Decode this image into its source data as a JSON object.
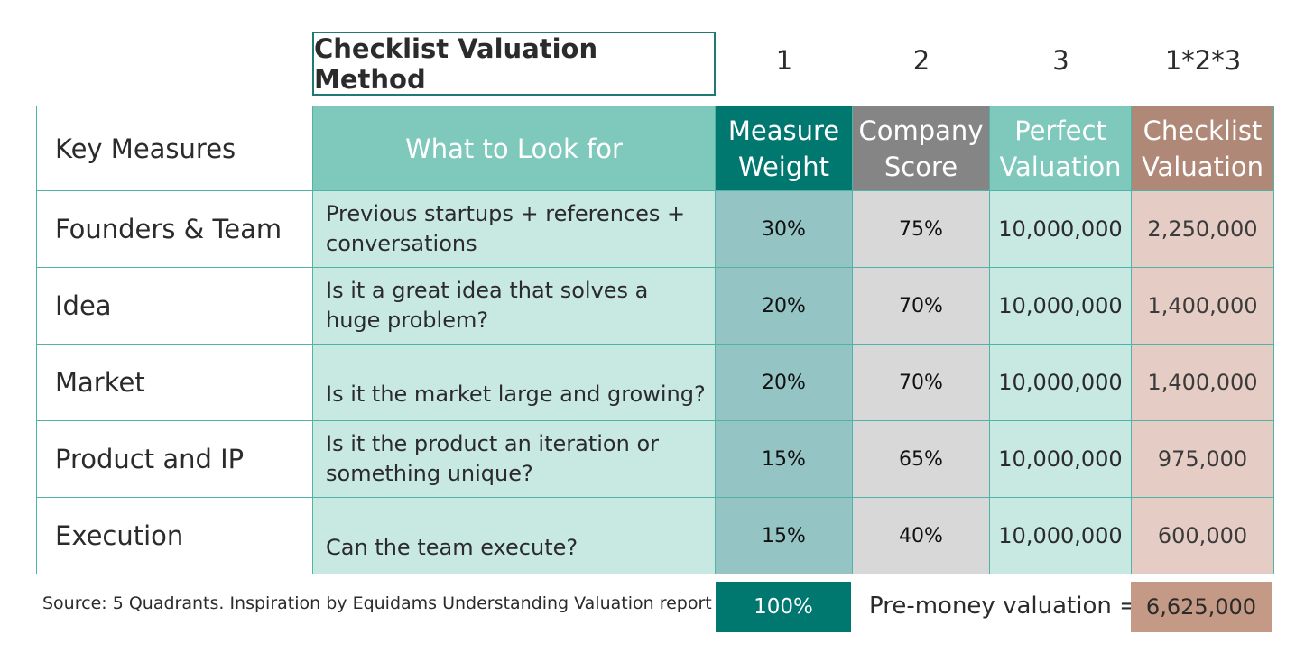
{
  "title": "Checklist Valuation Method",
  "column_numbers": [
    "1",
    "2",
    "3",
    "1*2*3"
  ],
  "headers": {
    "key_measures": "Key Measures",
    "what_to_look_for": "What to Look for",
    "measure_weight": [
      "Measure",
      "Weight"
    ],
    "company_score": [
      "Company",
      "Score"
    ],
    "perfect_valuation": [
      "Perfect",
      "Valuation"
    ],
    "checklist_valuation": [
      "Checklist",
      "Valuation"
    ]
  },
  "rows": [
    {
      "measure": "Founders & Team",
      "look_for": "Previous startups + references + conversations",
      "weight": "30%",
      "score": "75%",
      "perfect": "10,000,000",
      "valuation": "2,250,000"
    },
    {
      "measure": "Idea",
      "look_for": "Is it a great idea that solves a huge problem?",
      "weight": "20%",
      "score": "70%",
      "perfect": "10,000,000",
      "valuation": "1,400,000"
    },
    {
      "measure": "Market",
      "look_for": "Is it the market large and growing?",
      "weight": "20%",
      "score": "70%",
      "perfect": "10,000,000",
      "valuation": "1,400,000"
    },
    {
      "measure": "Product and IP",
      "look_for": "Is it the product an iteration or something unique?",
      "weight": "15%",
      "score": "65%",
      "perfect": "10,000,000",
      "valuation": "975,000"
    },
    {
      "measure": "Execution",
      "look_for": "Can the team execute?",
      "weight": "15%",
      "score": "40%",
      "perfect": "10,000,000",
      "valuation": "600,000"
    }
  ],
  "footer": {
    "source": "Source: 5 Quadrants. Inspiration by Equidams Understanding Valuation report",
    "total_weight": "100%",
    "premoney_label": "Pre-money valuation =",
    "premoney_value": "6,625,000"
  },
  "colors": {
    "teal_dark": "#00786f",
    "teal_mid": "#7fc8bc",
    "teal_light": "#c8e8e2",
    "grey_header": "#858585",
    "brown_header": "#b08877",
    "brown_light": "#e5ccc4"
  }
}
